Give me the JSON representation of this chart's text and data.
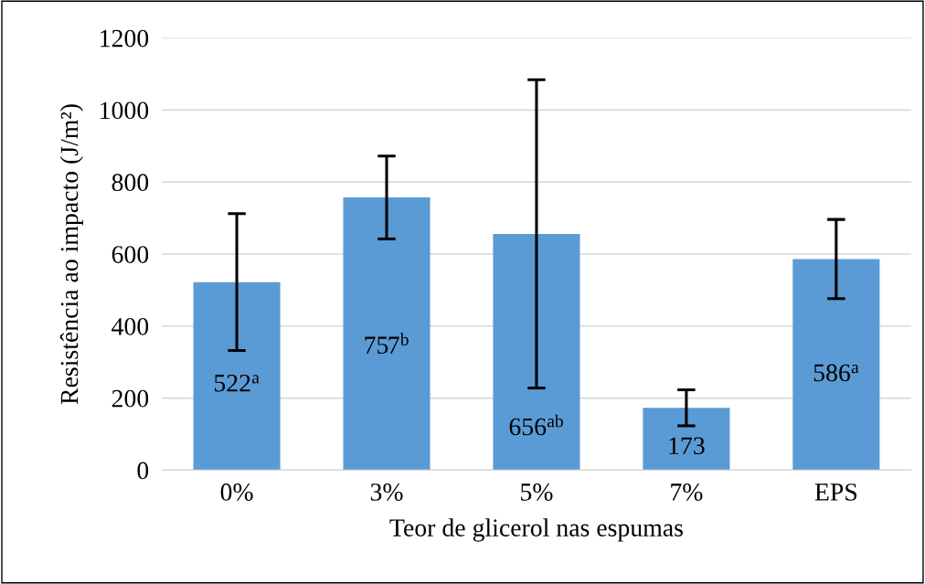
{
  "chart_data": {
    "type": "bar",
    "xlabel": "Teor de glicerol nas espumas",
    "ylabel": "Resistência ao impacto (J/m²)",
    "categories": [
      "0%",
      "3%",
      "5%",
      "7%",
      "EPS"
    ],
    "values": [
      522,
      757,
      656,
      173,
      586
    ],
    "color": "#5b9bd5",
    "errors": [
      [
        332,
        712
      ],
      [
        642,
        872
      ],
      [
        228,
        1084
      ],
      [
        123,
        223
      ],
      [
        476,
        696
      ]
    ],
    "value_labels": [
      "522$^{a}$",
      "757$^{b}$",
      "656$^{ab}$",
      "173",
      "586$^{a}$"
    ],
    "ylim": [
      0,
      1200
    ],
    "yticks": [
      0,
      200,
      400,
      600,
      800,
      1000,
      1200
    ],
    "grid": "y",
    "legend": false
  }
}
